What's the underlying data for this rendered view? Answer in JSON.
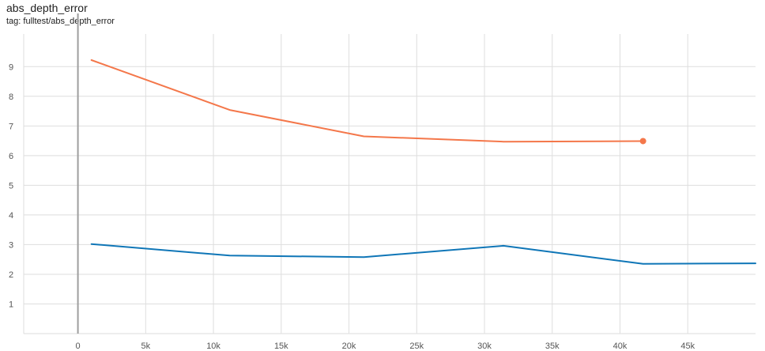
{
  "header": {
    "title": "abs_depth_error",
    "tag": "tag: fulltest/abs_depth_error"
  },
  "colors": {
    "orange": "#f4774a",
    "blue": "#0f76b7",
    "grid": "#dedede",
    "axis": "#9e9e9e"
  },
  "chart_data": {
    "type": "line",
    "title": "abs_depth_error",
    "subtitle": "tag: fulltest/abs_depth_error",
    "xlabel": "",
    "ylabel": "",
    "xlim": [
      -4000,
      50000
    ],
    "ylim": [
      0,
      10.1
    ],
    "x_ticks": [
      0,
      5000,
      10000,
      15000,
      20000,
      25000,
      30000,
      35000,
      40000,
      45000
    ],
    "x_tick_labels": [
      "0",
      "5k",
      "10k",
      "15k",
      "20k",
      "25k",
      "30k",
      "35k",
      "40k",
      "45k"
    ],
    "y_ticks": [
      1,
      2,
      3,
      4,
      5,
      6,
      7,
      8,
      9
    ],
    "y_tick_labels": [
      "1",
      "2",
      "3",
      "4",
      "5",
      "6",
      "7",
      "8",
      "9"
    ],
    "grid": true,
    "series": [
      {
        "color": "#f4774a",
        "x": [
          1000,
          11200,
          21100,
          31400,
          41700
        ],
        "y": [
          9.22,
          7.54,
          6.65,
          6.47,
          6.49
        ],
        "end_marker": true
      },
      {
        "color": "#0f76b7",
        "x": [
          1000,
          11200,
          21100,
          31400,
          41700,
          50000
        ],
        "y": [
          3.02,
          2.63,
          2.58,
          2.96,
          2.35,
          2.37
        ],
        "end_marker": false
      }
    ]
  }
}
